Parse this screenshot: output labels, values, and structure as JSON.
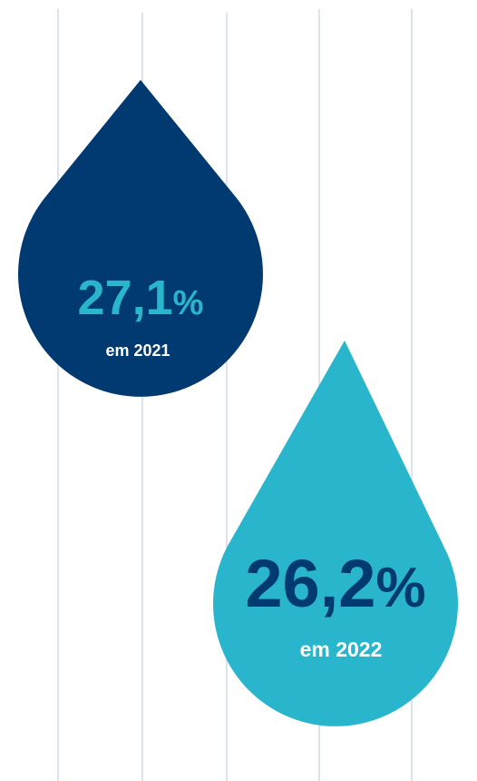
{
  "drops": [
    {
      "value": "27,1",
      "unit": "%",
      "caption": "em 2021"
    },
    {
      "value": "26,2",
      "unit": "%",
      "caption": "em 2022"
    }
  ]
}
